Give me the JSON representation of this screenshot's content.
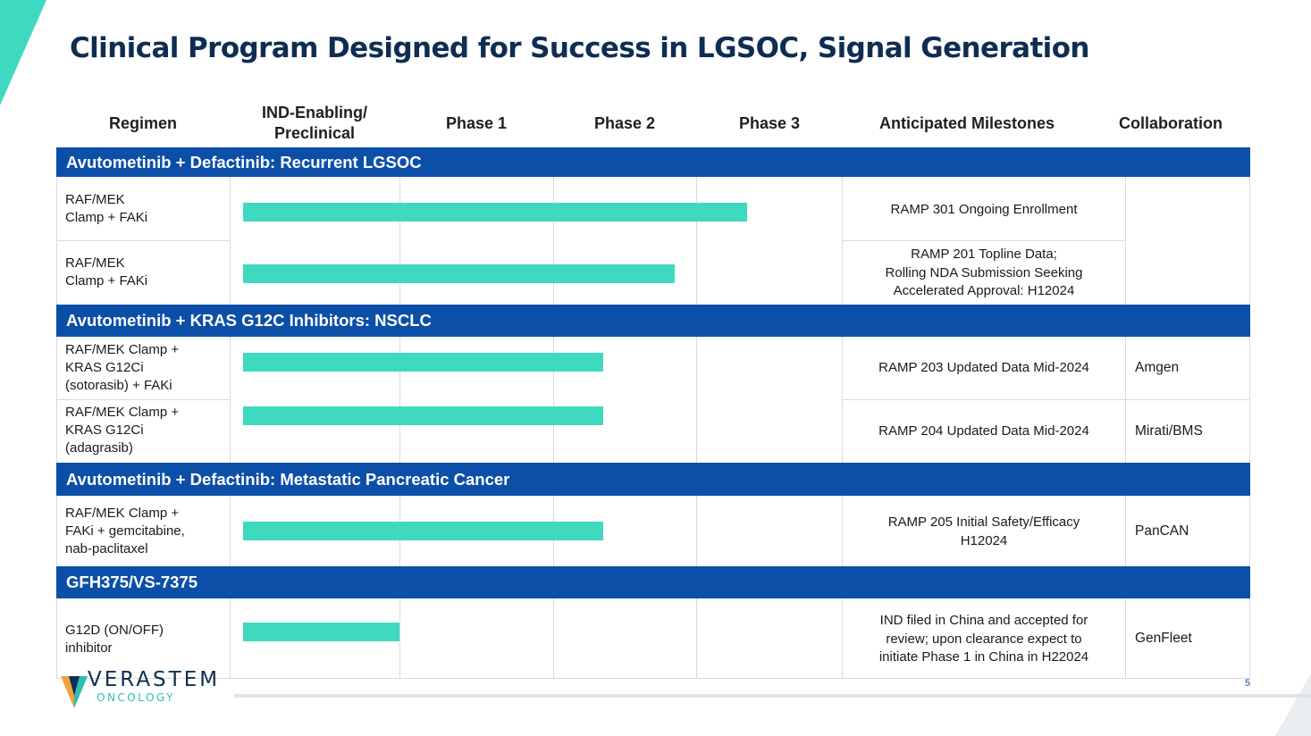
{
  "title": "Clinical Program Designed for Success in LGSOC, Signal Generation",
  "columns": {
    "regimen": "Regimen",
    "ind_line1": "IND-Enabling/",
    "ind_line2": "Preclinical",
    "phase1": "Phase 1",
    "phase2": "Phase 2",
    "phase3": "Phase 3",
    "milestones": "Anticipated Milestones",
    "collaboration": "Collaboration"
  },
  "bar_color": "#3fd9c0",
  "band_color": "#0c4fa8",
  "sections": [
    {
      "label": "Avutometinib + Defactinib: Recurrent LGSOC"
    },
    {
      "label": "Avutometinib + KRAS G12C Inhibitors: NSCLC"
    },
    {
      "label": "Avutometinib + Defactinib: Metastatic Pancreatic Cancer"
    },
    {
      "label": "GFH375/VS-7375"
    }
  ],
  "rows": [
    {
      "regimen": [
        "RAF/MEK",
        "Clamp + FAKi"
      ],
      "progress_phase": 3.35,
      "milestone": [
        "RAMP 301 Ongoing Enrollment"
      ],
      "collaboration": ""
    },
    {
      "regimen": [
        "RAF/MEK",
        "Clamp + FAKi"
      ],
      "progress_phase": 2.85,
      "milestone": [
        "RAMP 201 Topline Data;",
        "Rolling NDA Submission Seeking",
        "Accelerated Approval: H12024"
      ],
      "collaboration": ""
    },
    {
      "regimen": [
        "RAF/MEK Clamp +",
        "KRAS G12Ci",
        "(sotorasib) + FAKi"
      ],
      "progress_phase": 2.35,
      "milestone": [
        "RAMP 203 Updated Data Mid-2024"
      ],
      "collaboration": "Amgen"
    },
    {
      "regimen": [
        "RAF/MEK Clamp +",
        "KRAS G12Ci",
        "(adagrasib)"
      ],
      "progress_phase": 2.35,
      "milestone": [
        "RAMP 204 Updated Data Mid-2024"
      ],
      "collaboration": "Mirati/BMS"
    },
    {
      "regimen": [
        "RAF/MEK Clamp +",
        "FAKi + gemcitabine,",
        "nab-paclitaxel"
      ],
      "progress_phase": 2.35,
      "milestone": [
        "RAMP 205 Initial Safety/Efficacy",
        "H12024"
      ],
      "collaboration": "PanCAN"
    },
    {
      "regimen": [
        "G12D (ON/OFF)",
        "inhibitor"
      ],
      "progress_phase": 1.0,
      "milestone": [
        "IND filed in China and accepted for",
        "review; upon clearance expect to",
        "initiate Phase 1 in China in H22024"
      ],
      "collaboration": "GenFleet"
    }
  ],
  "logo": {
    "name": "VERASTEM",
    "sub": "ONCOLOGY",
    "icon": "verastem-v-icon"
  },
  "page_number": "5"
}
